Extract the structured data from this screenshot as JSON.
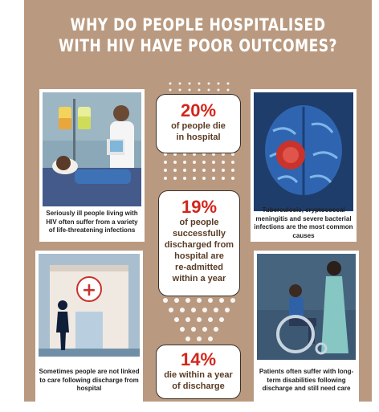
{
  "title_line1": "WHY DO PEOPLE HOSPITALISED",
  "title_line2": "WITH HIV HAVE POOR OUTCOMES?",
  "cards": {
    "top_left": "Seriously ill people living with HIV often suffer from a variety of life-threatening infections",
    "top_right": "Tuberculosis, cryptococcal meningitis and severe bacterial infections are the most common causes",
    "bottom_left": "Sometimes people are not linked to care following discharge from hospital",
    "bottom_right": "Patients often suffer with long-term disabilities following discharge and still need care"
  },
  "stats": [
    {
      "percent": "20%",
      "line1": "of people die",
      "line2": "in hospital"
    },
    {
      "percent": "19%",
      "line1": "of people",
      "line2": "successfully",
      "line3": "discharged from",
      "line4": "hospital are",
      "line5": "re-admitted",
      "line6": "within a year"
    },
    {
      "percent": "14%",
      "line1": "die within a year",
      "line2": "of discharge"
    }
  ],
  "hospital_sign": "+",
  "colors": {
    "background": "#b99a80",
    "accent": "#d2261b",
    "text": "#5a3b24",
    "card": "#ffffff"
  }
}
